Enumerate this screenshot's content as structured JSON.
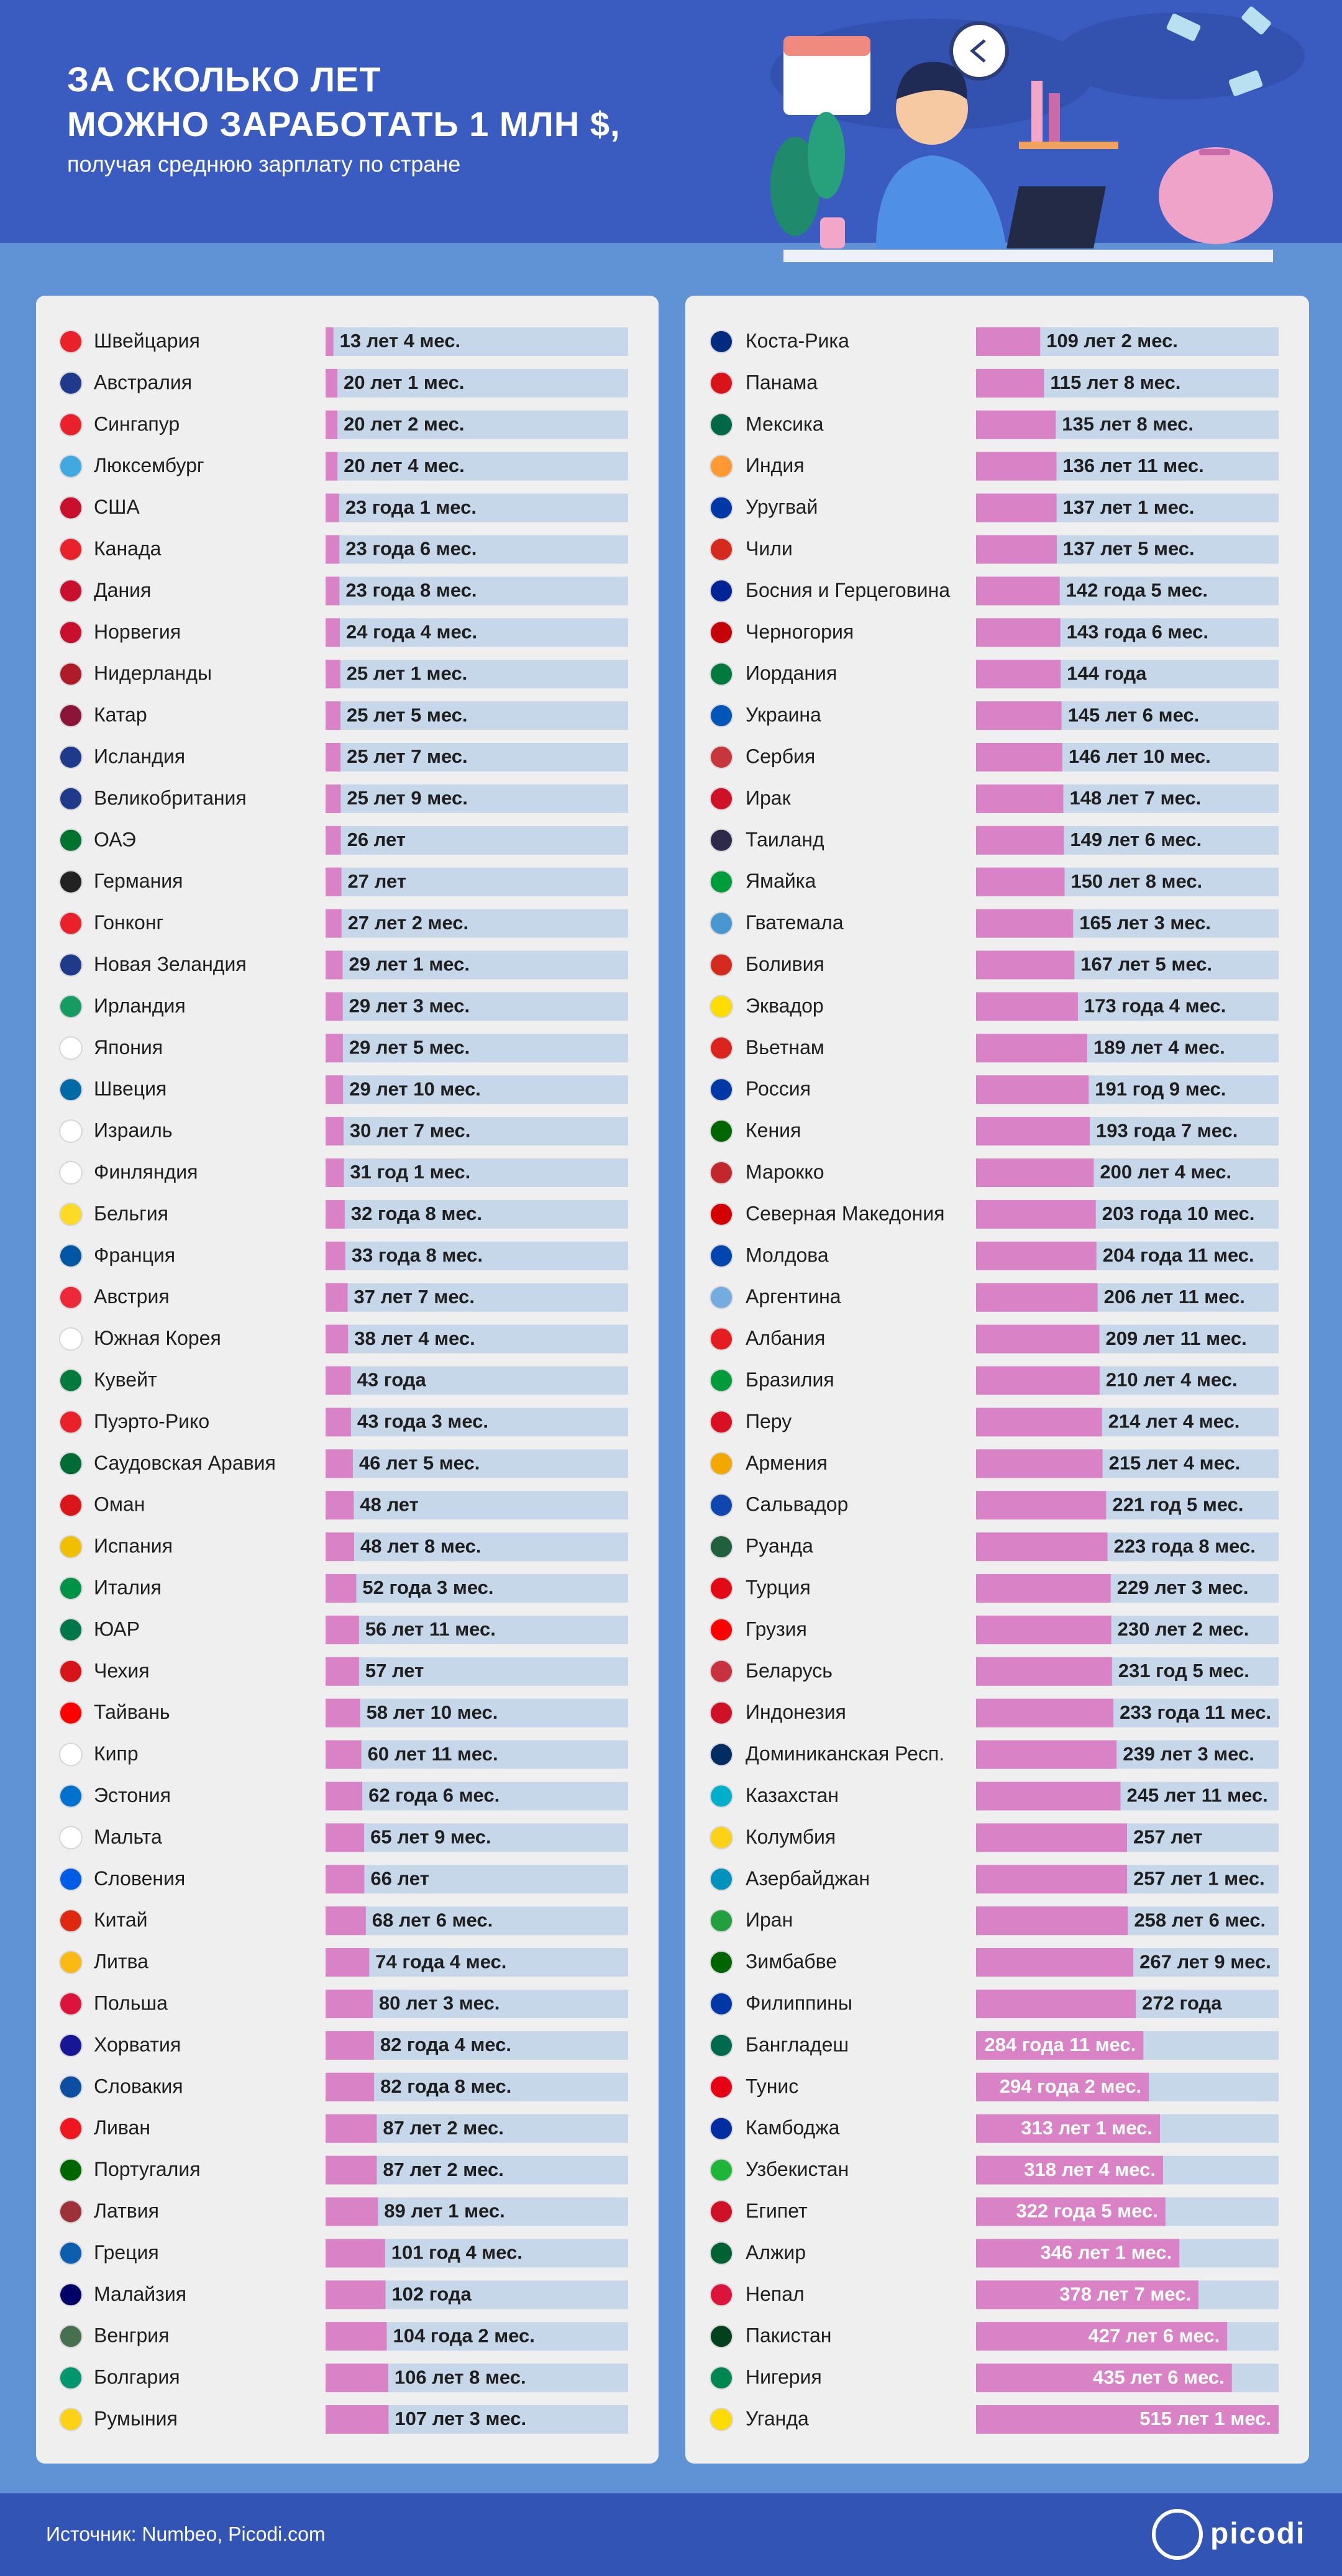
{
  "header": {
    "title_lines": [
      "ЗА СКОЛЬКО ЛЕТ",
      "МОЖНО ЗАРАБОТАТЬ 1 МЛН $,"
    ],
    "subtitle": "получая среднюю зарплату по стране"
  },
  "chart_data": [
    {
      "type": "bar",
      "orientation": "horizontal",
      "color": "#d982c6",
      "xlim": [
        0,
        515.08
      ],
      "categories": [
        "Швейцария",
        "Австралия",
        "Сингапур",
        "Люксембург",
        "США",
        "Канада",
        "Дания",
        "Норвегия",
        "Нидерланды",
        "Катар",
        "Исландия",
        "Великобритания",
        "ОАЭ",
        "Германия",
        "Гонконг",
        "Новая Зеландия",
        "Ирландия",
        "Япония",
        "Швеция",
        "Израиль",
        "Финляндия",
        "Бельгия",
        "Франция",
        "Австрия",
        "Южная Корея",
        "Кувейт",
        "Пуэрто-Рико",
        "Саудовская Аравия",
        "Оман",
        "Испания",
        "Италия",
        "ЮАР",
        "Чехия",
        "Тайвань",
        "Кипр",
        "Эстония",
        "Мальта",
        "Словения",
        "Китай",
        "Литва",
        "Польша",
        "Хорватия",
        "Словакия",
        "Ливан",
        "Португалия",
        "Латвия",
        "Греция",
        "Малайзия",
        "Венгрия",
        "Болгария",
        "Румыния"
      ],
      "values": [
        13.33,
        20.08,
        20.17,
        20.33,
        23.08,
        23.5,
        23.67,
        24.33,
        25.08,
        25.42,
        25.58,
        25.75,
        26,
        27,
        27.17,
        29.08,
        29.25,
        29.42,
        29.83,
        30.58,
        31.08,
        32.67,
        33.67,
        37.58,
        38.33,
        43,
        43.25,
        46.42,
        48,
        48.67,
        52.25,
        56.92,
        57,
        58.83,
        60.92,
        62.5,
        65.75,
        66,
        68.5,
        74.33,
        80.25,
        82.33,
        82.67,
        87.17,
        87.17,
        89.08,
        101.33,
        102,
        104.17,
        106.67,
        107.25
      ],
      "value_labels": [
        "13 лет 4 мес.",
        "20 лет 1 мес.",
        "20 лет 2 мес.",
        "20 лет 4 мес.",
        "23 года 1 мес.",
        "23 года 6 мес.",
        "23 года 8 мес.",
        "24 года 4 мес.",
        "25 лет 1 мес.",
        "25 лет 5 мес.",
        "25 лет 7 мес.",
        "25 лет 9 мес.",
        "26 лет",
        "27 лет",
        "27 лет 2 мес.",
        "29 лет 1 мес.",
        "29 лет 3 мес.",
        "29 лет 5 мес.",
        "29 лет 10 мес.",
        "30 лет 7 мес.",
        "31 год 1 мес.",
        "32 года 8 мес.",
        "33 года 8 мес.",
        "37 лет 7 мес.",
        "38 лет 4 мес.",
        "43 года",
        "43 года 3 мес.",
        "46 лет 5 мес.",
        "48 лет",
        "48 лет 8 мес.",
        "52 года 3 мес.",
        "56 лет 11 мес.",
        "57 лет",
        "58 лет 10 мес.",
        "60 лет 11 мес.",
        "62 года 6 мес.",
        "65 лет 9 мес.",
        "66 лет",
        "68 лет 6 мес.",
        "74 года 4 мес.",
        "80 лет 3 мес.",
        "82 года 4 мес.",
        "82 года 8 мес.",
        "87 лет 2 мес.",
        "87 лет 2 мес.",
        "89 лет 1 мес.",
        "101 год 4 мес.",
        "102 года",
        "104 года 2 мес.",
        "106 лет 8 мес.",
        "107 лет 3 мес."
      ]
    },
    {
      "type": "bar",
      "orientation": "horizontal",
      "color": "#d982c6",
      "xlim": [
        0,
        515.08
      ],
      "categories": [
        "Коста-Рика",
        "Панама",
        "Мексика",
        "Индия",
        "Уругвай",
        "Чили",
        "Босния и Герцеговина",
        "Черногория",
        "Иордания",
        "Украина",
        "Сербия",
        "Ирак",
        "Таиланд",
        "Ямайка",
        "Гватемала",
        "Боливия",
        "Эквадор",
        "Вьетнам",
        "Россия",
        "Кения",
        "Марокко",
        "Северная Македония",
        "Молдова",
        "Аргентина",
        "Албания",
        "Бразилия",
        "Перу",
        "Армения",
        "Сальвадор",
        "Руанда",
        "Турция",
        "Грузия",
        "Беларусь",
        "Индонезия",
        "Доминиканская Респ.",
        "Казахстан",
        "Колумбия",
        "Азербайджан",
        "Иран",
        "Зимбабве",
        "Филиппины",
        "Бангладеш",
        "Тунис",
        "Камбоджа",
        "Узбекистан",
        "Египет",
        "Алжир",
        "Непал",
        "Пакистан",
        "Нигерия",
        "Уганда"
      ],
      "values": [
        109.17,
        115.67,
        135.67,
        136.92,
        137.08,
        137.42,
        142.42,
        143.5,
        144,
        145.5,
        146.83,
        148.58,
        149.5,
        150.67,
        165.25,
        167.42,
        173.33,
        189.33,
        191.75,
        193.58,
        200.33,
        203.83,
        204.92,
        206.92,
        209.92,
        210.33,
        214.33,
        215.33,
        221.42,
        223.67,
        229.25,
        230.17,
        231.42,
        233.92,
        239.25,
        245.92,
        257,
        257.08,
        258.5,
        267.75,
        272,
        284.92,
        294.17,
        313.08,
        318.33,
        322.42,
        346.08,
        378.58,
        427.5,
        435.5,
        515.08
      ],
      "value_labels": [
        "109 лет 2 мес.",
        "115 лет 8 мес.",
        "135 лет 8 мес.",
        "136 лет 11 мес.",
        "137 лет 1 мес.",
        "137 лет 5 мес.",
        "142 года 5 мес.",
        "143 года 6 мес.",
        "144 года",
        "145 лет 6 мес.",
        "146 лет 10 мес.",
        "148 лет 7 мес.",
        "149 лет 6 мес.",
        "150 лет 8 мес.",
        "165 лет 3 мес.",
        "167 лет 5 мес.",
        "173 года 4 мес.",
        "189 лет 4 мес.",
        "191 год 9 мес.",
        "193 года 7 мес.",
        "200 лет 4 мес.",
        "203 года 10 мес.",
        "204 года 11 мес.",
        "206 лет 11 мес.",
        "209 лет 11 мес.",
        "210 лет 4 мес.",
        "214 лет 4 мес.",
        "215 лет 4 мес.",
        "221 год 5 мес.",
        "223 года 8 мес.",
        "229 лет 3 мес.",
        "230 лет 2 мес.",
        "231 год 5 мес.",
        "233 года 11 мес.",
        "239 лет 3 мес.",
        "245 лет 11 мес.",
        "257 лет",
        "257 лет 1 мес.",
        "258 лет 6 мес.",
        "267 лет 9 мес.",
        "272 года",
        "284 года 11 мес.",
        "294 года 2 мес.",
        "313 лет 1 мес.",
        "318 лет 4 мес.",
        "322 года 5 мес.",
        "346 лет 1 мес.",
        "378 лет 7 мес.",
        "427 лет 6 мес.",
        "435 лет 6 мес.",
        "515 лет 1 мес."
      ]
    }
  ],
  "footer": {
    "source": "Источник: Numbeo, Picodi.com",
    "logo": "picodi"
  }
}
